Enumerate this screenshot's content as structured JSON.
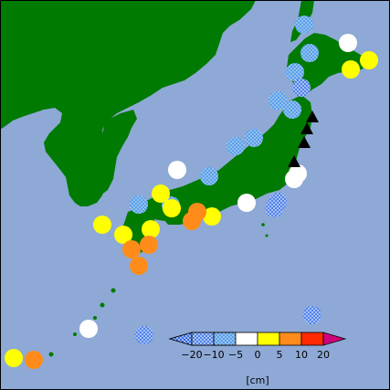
{
  "colors": {
    "sea": "#8ea9d6",
    "land": "#007a00",
    "border": "#000000",
    "marker_triangle": "#000000"
  },
  "legend": {
    "unit_label": "[cm]",
    "tick_labels": [
      "−20",
      "−10",
      "−5",
      "0",
      "5",
      "10",
      "20"
    ],
    "bins": [
      {
        "range": "< −20",
        "color": "#1f4fd6",
        "pattern": "crosshatch"
      },
      {
        "range": "−20 to −10",
        "color": "#3f6fe0",
        "pattern": "crosshatch"
      },
      {
        "range": "−10 to −5",
        "color": "#5aa0e8",
        "pattern": "dots"
      },
      {
        "range": "−5 to 0",
        "color": "#ffffff",
        "pattern": "none"
      },
      {
        "range": "0 to 5",
        "color": "#ffff00",
        "pattern": "none"
      },
      {
        "range": "5 to 10",
        "color": "#ff8c1a",
        "pattern": "none"
      },
      {
        "range": "10 to 20",
        "color": "#ff2a00",
        "pattern": "none"
      },
      {
        "range": "> 20",
        "color": "#d0007a",
        "pattern": "none"
      }
    ]
  },
  "stations": [
    {
      "id": "s01",
      "bin": "−10 to −5"
    },
    {
      "id": "s02",
      "bin": "−10 to −5"
    },
    {
      "id": "s03",
      "bin": "−5 to 0"
    },
    {
      "id": "s04",
      "bin": "0 to 5"
    },
    {
      "id": "s05",
      "bin": "0 to 5"
    },
    {
      "id": "s06",
      "bin": "−10 to −5"
    },
    {
      "id": "s07",
      "bin": "−20 to −10"
    },
    {
      "id": "s08",
      "bin": "−10 to −5"
    },
    {
      "id": "s09",
      "bin": "−10 to −5"
    },
    {
      "id": "s10",
      "bin": "−10 to −5"
    },
    {
      "id": "s11",
      "bin": "−10 to −5"
    },
    {
      "id": "s12",
      "bin": "−10 to −5"
    },
    {
      "id": "s13",
      "bin": "−5 to 0"
    },
    {
      "id": "s14",
      "bin": "−10 to −5"
    },
    {
      "id": "s15",
      "bin": "−5 to 0"
    },
    {
      "id": "s16",
      "bin": "−20 to −10"
    },
    {
      "id": "s17",
      "bin": "−20 to −10"
    },
    {
      "id": "s18",
      "bin": "−5 to 0"
    },
    {
      "id": "s19",
      "bin": "−5 to 0"
    },
    {
      "id": "s20",
      "bin": "0 to 5"
    },
    {
      "id": "s21",
      "bin": "5 to 10"
    },
    {
      "id": "s22",
      "bin": "5 to 10"
    },
    {
      "id": "s23",
      "bin": "0 to 5"
    },
    {
      "id": "s24",
      "bin": "0 to 5"
    },
    {
      "id": "s25",
      "bin": "−10 to −5"
    },
    {
      "id": "s26",
      "bin": "0 to 5"
    },
    {
      "id": "s27",
      "bin": "0 to 5"
    },
    {
      "id": "s28",
      "bin": "0 to 5"
    },
    {
      "id": "s29",
      "bin": "5 to 10"
    },
    {
      "id": "s30",
      "bin": "5 to 10"
    },
    {
      "id": "s31",
      "bin": "5 to 10"
    },
    {
      "id": "s32",
      "bin": "−5 to 0"
    },
    {
      "id": "s33",
      "bin": "−20 to −10"
    },
    {
      "id": "s34",
      "bin": "0 to 5"
    },
    {
      "id": "s35",
      "bin": "5 to 10"
    },
    {
      "id": "s36",
      "bin": "−20 to −10"
    }
  ],
  "markers": [
    {
      "id": "t1",
      "type": "triangle-up"
    },
    {
      "id": "t2",
      "type": "triangle-up"
    },
    {
      "id": "t3",
      "type": "triangle-up"
    },
    {
      "id": "t4",
      "type": "triangle-up"
    }
  ]
}
